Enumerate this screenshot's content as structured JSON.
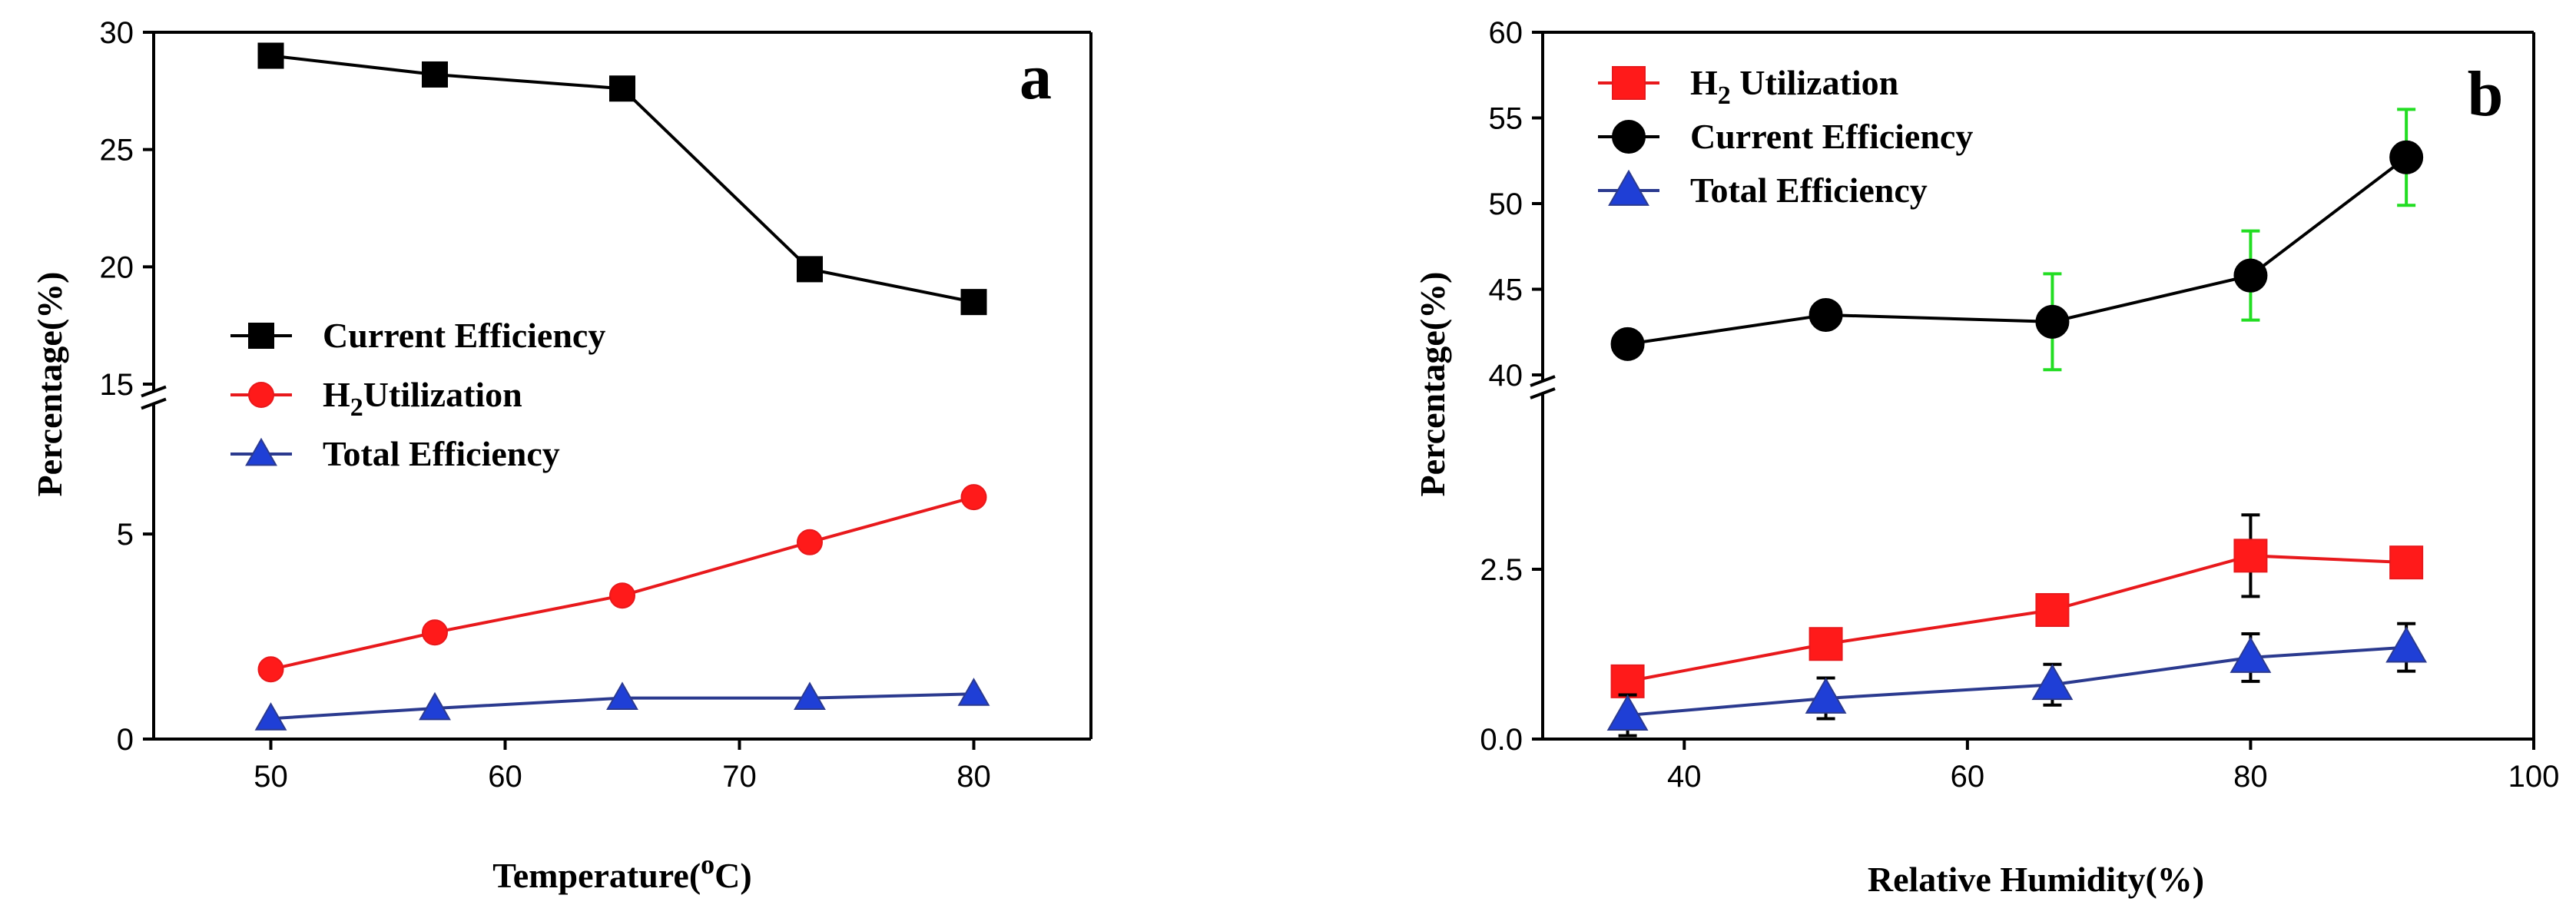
{
  "chart_data": [
    {
      "type": "line",
      "panel_label": "a",
      "xlabel": "Temperature(",
      "xlabel_sup": "o",
      "xlabel_tail": "C)",
      "ylabel": "Percentage(%)",
      "x": [
        50,
        57,
        65,
        73,
        80
      ],
      "xlim": [
        45,
        85
      ],
      "xticks": [
        50,
        60,
        70,
        80
      ],
      "ylim_lower": [
        0,
        8
      ],
      "ylim_upper": [
        15,
        30
      ],
      "yticks_lower": [
        0,
        5
      ],
      "yticks_upper": [
        15,
        20,
        25,
        30
      ],
      "axis_break": true,
      "legend_position": "middle-left",
      "series": [
        {
          "name": "Current Efficiency",
          "marker": "square",
          "color": "#000000",
          "marker_color": "#000000",
          "values": [
            29.0,
            28.2,
            27.6,
            19.9,
            18.5
          ]
        },
        {
          "name": "Utilization",
          "name_prefix": "H",
          "name_sub": "2",
          "marker": "circle",
          "color": "#e8191c",
          "marker_color": "#ff1a1a",
          "values": [
            1.7,
            2.6,
            3.5,
            4.8,
            5.9
          ]
        },
        {
          "name": "Total Efficiency",
          "marker": "triangle",
          "color": "#2b3a8f",
          "marker_color": "#1f3fd6",
          "values": [
            0.5,
            0.75,
            1.0,
            1.0,
            1.1
          ]
        }
      ]
    },
    {
      "type": "line",
      "panel_label": "b",
      "xlabel": "Relative Humidity(%)",
      "ylabel": "Percentage(%)",
      "x": [
        36,
        50,
        66,
        80,
        91
      ],
      "xlim": [
        30,
        100
      ],
      "xticks": [
        40,
        60,
        80,
        100
      ],
      "ylim_lower": [
        0,
        5
      ],
      "ylim_upper": [
        40,
        60
      ],
      "yticks_lower": [
        0.0,
        2.5
      ],
      "ytick_labels_lower": [
        "0.0",
        "2.5"
      ],
      "yticks_upper": [
        40,
        45,
        50,
        55,
        60
      ],
      "axis_break": true,
      "legend_position": "top-left",
      "error_bar_color": "#22dd22",
      "series": [
        {
          "name": " Utilization",
          "name_prefix": "H",
          "name_sub": "2",
          "marker": "square",
          "color": "#e8191c",
          "marker_color": "#ff1a1a",
          "values": [
            0.85,
            1.4,
            1.9,
            2.7,
            2.6
          ],
          "errors": [
            0.15,
            0.15,
            0.2,
            0.6,
            0.15
          ]
        },
        {
          "name": "Current Efficiency",
          "marker": "circle",
          "color": "#000000",
          "marker_color": "#000000",
          "values": [
            41.8,
            43.5,
            43.1,
            45.8,
            52.7
          ],
          "errors": [
            0.4,
            0.5,
            2.8,
            2.6,
            2.8
          ]
        },
        {
          "name": "Total Efficiency",
          "marker": "triangle",
          "color": "#2b3a8f",
          "marker_color": "#1f3fd6",
          "values": [
            0.35,
            0.6,
            0.8,
            1.2,
            1.35
          ],
          "errors": [
            0.3,
            0.3,
            0.3,
            0.35,
            0.35
          ]
        }
      ]
    }
  ]
}
